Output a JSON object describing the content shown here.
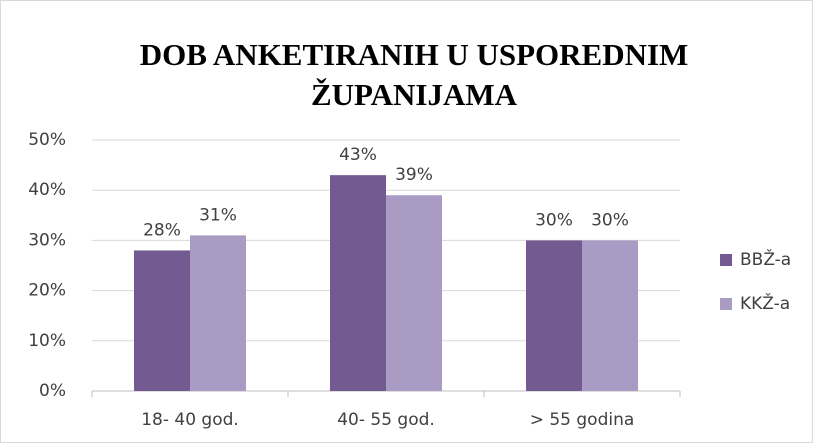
{
  "chart_data": {
    "type": "bar",
    "title": [
      "DOB ANKETIRANIH U USPOREDNIM",
      "ŽUPANIJAMA"
    ],
    "categories": [
      "18- 40 god.",
      "40- 55 god.",
      "> 55 godina"
    ],
    "series": [
      {
        "name": "BBŽ-a",
        "color": "#735a91",
        "values": [
          28,
          43,
          30
        ],
        "value_labels": [
          "28%",
          "43%",
          "30%"
        ]
      },
      {
        "name": "KKŽ-a",
        "color": "#a99bc4",
        "values": [
          31,
          39,
          30
        ],
        "value_labels": [
          "31%",
          "39%",
          "30%"
        ]
      }
    ],
    "ylim": [
      0,
      50
    ],
    "yticks": [
      {
        "value": 0,
        "label": "0%"
      },
      {
        "value": 10,
        "label": "10%"
      },
      {
        "value": 20,
        "label": "20%"
      },
      {
        "value": 30,
        "label": "30%"
      },
      {
        "value": 40,
        "label": "40%"
      },
      {
        "value": 50,
        "label": "50%"
      }
    ],
    "grid": true,
    "legend": "right"
  }
}
